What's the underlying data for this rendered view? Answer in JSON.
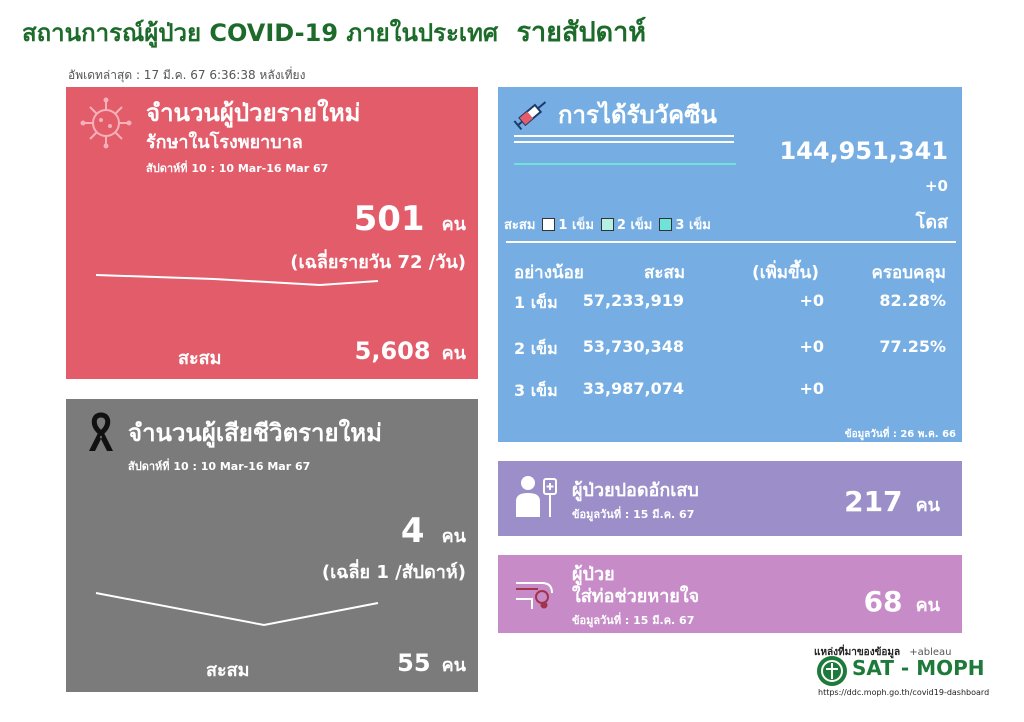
{
  "header": {
    "title": "สถานการณ์ผู้ป่วย COVID-19 ภายในประเทศ",
    "title_suffix": "รายสัปดาห์",
    "updated": "อัพเดทล่าสุด : 17 มี.ค. 67 6:36:38 หลังเที่ยง"
  },
  "new_cases": {
    "title": "จำนวนผู้ป่วยรายใหม่",
    "subtitle": "รักษาในโรงพยาบาล",
    "week": "สัปดาห์ที่ 10 : 10 Mar-16 Mar 67",
    "value": "501",
    "unit": "คน",
    "avg": "(เฉลี่ยรายวัน 72 /วัน)",
    "cum_label": "สะสม",
    "cum_value": "5,608",
    "cum_unit": "คน",
    "color": "#e25c6a"
  },
  "deaths": {
    "title": "จำนวนผู้เสียชีวิตรายใหม่",
    "week": "สัปดาห์ที่ 10 : 10 Mar-16 Mar 67",
    "value": "4",
    "unit": "คน",
    "avg": "(เฉลี่ย 1 /สัปดาห์)",
    "cum_label": "สะสม",
    "cum_value": "55",
    "cum_unit": "คน",
    "color": "#7b7b7b"
  },
  "vaccine": {
    "title": "การได้รับวัคซีน",
    "total": "144,951,341",
    "delta": "+0",
    "dose_unit": "โดส",
    "legend": {
      "label": "สะสม",
      "d1": "1 เข็ม",
      "d2": "2 เข็ม",
      "d3": "3 เข็ม"
    },
    "headers": [
      "อย่างน้อย",
      "สะสม",
      "(เพิ่มขึ้น)",
      "ครอบคลุม"
    ],
    "rows": [
      {
        "dose": "1 เข็ม",
        "cum": "57,233,919",
        "add": "+0",
        "cover": "82.28%"
      },
      {
        "dose": "2 เข็ม",
        "cum": "53,730,348",
        "add": "+0",
        "cover": "77.25%"
      },
      {
        "dose": "3 เข็ม",
        "cum": "33,987,074",
        "add": "+0",
        "cover": ""
      }
    ],
    "date": "ข้อมูลวันที่ : 26 พ.ค. 66",
    "color": "#76aee3"
  },
  "pneumonia": {
    "title": "ผู้ป่วยปอดอักเสบ",
    "date": "ข้อมูลวันที่ : 15 มี.ค. 67",
    "value": "217",
    "unit": "คน",
    "color": "#9b8ec9"
  },
  "ventilator": {
    "title1": "ผู้ป่วย",
    "title2": "ใส่ท่อช่วยหายใจ",
    "date": "ข้อมูลวันที่ : 15 มี.ค. 67",
    "value": "68",
    "unit": "คน",
    "color": "#c78bc8"
  },
  "footer": {
    "source": "แหล่งที่มาของข้อมูล",
    "tableau": "+ableau",
    "brand": "SAT - MOPH",
    "url": "https://ddc.moph.go.th/covid19-dashboard"
  },
  "icons": [
    "virus-icon",
    "black-ribbon-icon",
    "syringe-icon",
    "patient-icon",
    "ventilator-icon",
    "moph-logo-icon"
  ]
}
